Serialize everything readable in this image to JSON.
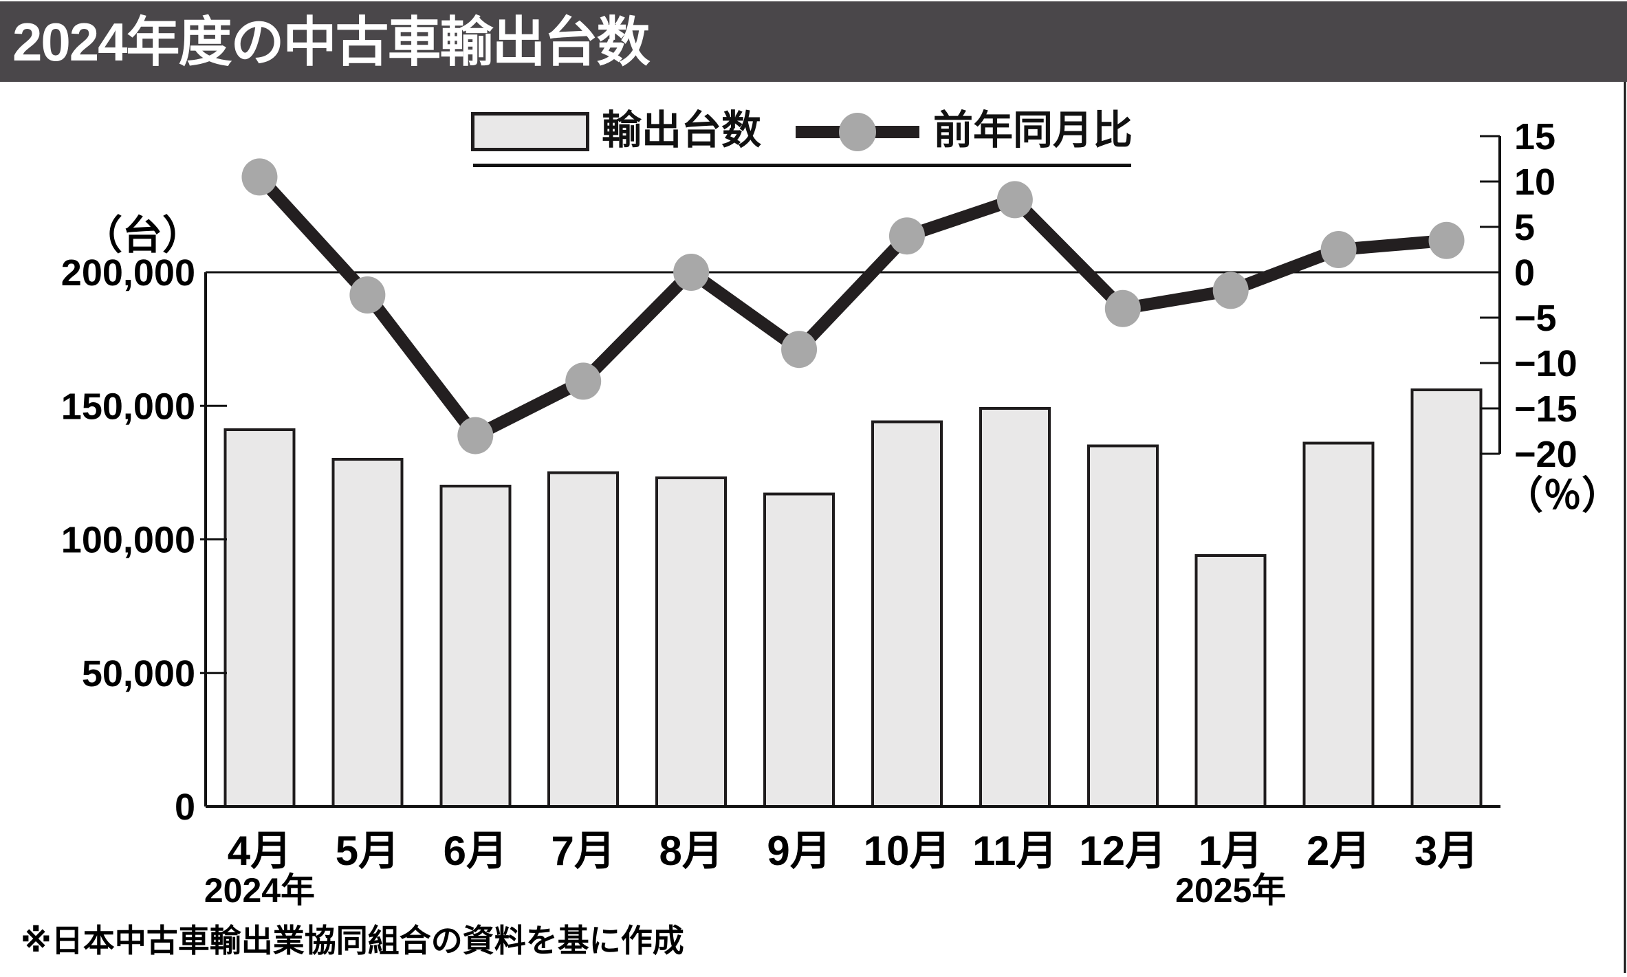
{
  "header": {
    "title": "2024年度の中古車輸出台数"
  },
  "legend": {
    "bars_label": "輸出台数",
    "line_label": "前年同月比"
  },
  "footnote": "※日本中古車輸出業協同組合の資料を基に作成",
  "colors": {
    "header_bg": "#4a474a",
    "title_text": "#ffffff",
    "bar_fill": "#e9e8e8",
    "bar_border": "#1f1c1d",
    "line_color": "#231f20",
    "dot_color": "#a8a8a8",
    "axis_color": "#111111",
    "text_color": "#000000",
    "background": "#ffffff"
  },
  "chart_data": {
    "type": "bar+line",
    "title": "2024年度の中古車輸出台数",
    "categories": [
      "4月",
      "5月",
      "6月",
      "7月",
      "8月",
      "9月",
      "10月",
      "11月",
      "12月",
      "1月",
      "2月",
      "3月"
    ],
    "year_markers": [
      {
        "label": "2024年",
        "index": 0
      },
      {
        "label": "2025年",
        "index": 9
      }
    ],
    "series": [
      {
        "name": "輸出台数",
        "type": "bar",
        "axis": "left",
        "unit": "台",
        "values": [
          141000,
          130000,
          120000,
          125000,
          123000,
          117000,
          144000,
          149000,
          135000,
          94000,
          136000,
          156000
        ]
      },
      {
        "name": "前年同月比",
        "type": "line",
        "axis": "right",
        "unit": "%",
        "values": [
          10.5,
          -2.5,
          -18,
          -12,
          0,
          -8.5,
          4,
          8,
          -4,
          -2,
          2.5,
          3.5
        ]
      }
    ],
    "left_axis": {
      "unit_label": "（台）",
      "tick_values": [
        0,
        50000,
        100000,
        150000,
        200000
      ],
      "tick_labels": [
        "0",
        "50,000",
        "100,000",
        "150,000",
        "200,000"
      ],
      "range": [
        0,
        200000
      ]
    },
    "right_axis": {
      "unit_label": "（％）",
      "tick_values": [
        15,
        10,
        5,
        0,
        -5,
        -10,
        -15,
        -20
      ],
      "tick_labels": [
        "15",
        "10",
        "5",
        "0",
        "−5",
        "−10",
        "−15",
        "−20"
      ],
      "range": [
        -20,
        15
      ]
    },
    "gridlines": "single horizontal line at left 200,000 / right 0%",
    "legend_position": "top-center"
  }
}
